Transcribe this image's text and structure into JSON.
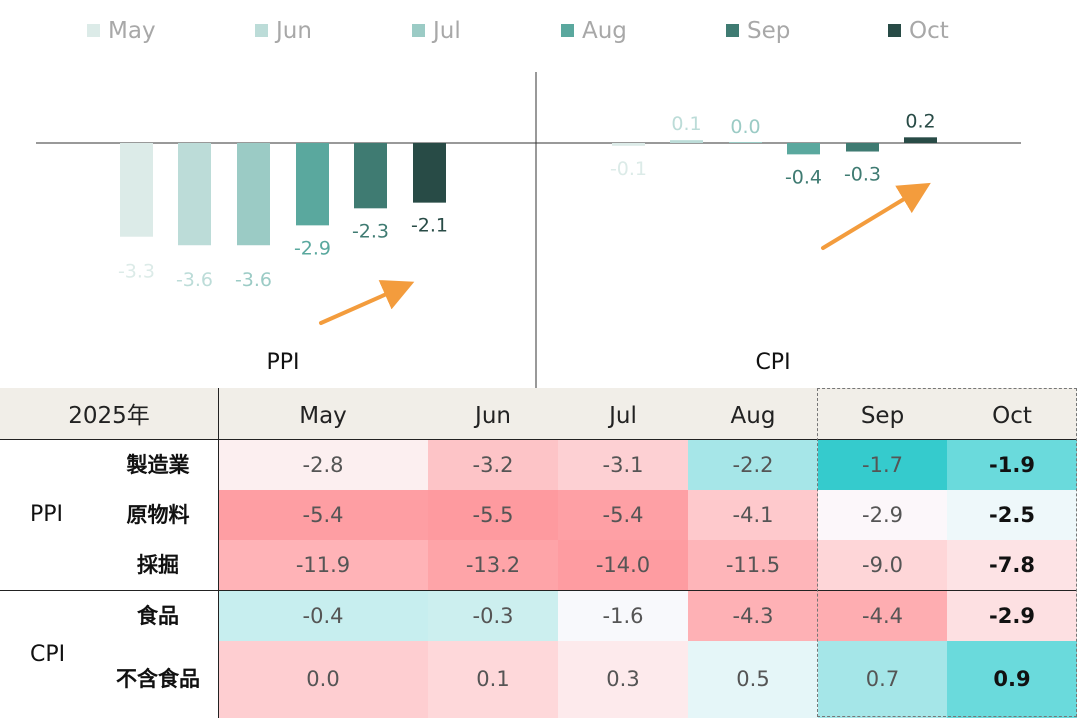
{
  "chart_data": [
    {
      "type": "bar",
      "title": "PPI",
      "categories": [
        "May",
        "Jun",
        "Jul",
        "Aug",
        "Sep",
        "Oct"
      ],
      "values": [
        -3.3,
        -3.6,
        -3.6,
        -2.9,
        -2.3,
        -2.1
      ],
      "labels": [
        "-3.3",
        "-3.6",
        "-3.6",
        "-2.9",
        "-2.3",
        "-2.1"
      ],
      "ylim": [
        -4,
        1
      ]
    },
    {
      "type": "bar",
      "title": "CPI",
      "categories": [
        "May",
        "Jun",
        "Jul",
        "Aug",
        "Sep",
        "Oct"
      ],
      "values": [
        -0.1,
        0.1,
        0.0,
        -0.4,
        -0.3,
        0.2
      ],
      "labels": [
        "-0.1",
        "0.1",
        "0.0",
        "-0.4",
        "-0.3",
        "0.2"
      ],
      "ylim": [
        -4,
        1
      ]
    }
  ],
  "legend": {
    "items": [
      "May",
      "Jun",
      "Jul",
      "Aug",
      "Sep",
      "Oct"
    ],
    "colors": [
      "#dcebe8",
      "#bcdcd8",
      "#9bcbc5",
      "#5aa89e",
      "#3f7b72",
      "#284b46"
    ]
  },
  "table": {
    "year_label": "2025年",
    "columns": [
      "May",
      "Jun",
      "Jul",
      "Aug",
      "Sep",
      "Oct"
    ],
    "groups": [
      {
        "name": "PPI",
        "rows": [
          {
            "label": "製造業",
            "values": [
              "-2.8",
              "-3.2",
              "-3.1",
              "-2.2",
              "-1.7",
              "-1.9"
            ],
            "colors": [
              "#fceff0",
              "#fdc4c7",
              "#fdd0d3",
              "#a6e6e8",
              "#35cbcd",
              "#6adadc"
            ]
          },
          {
            "label": "原物料",
            "values": [
              "-5.4",
              "-5.5",
              "-5.4",
              "-4.1",
              "-2.9",
              "-2.5"
            ],
            "colors": [
              "#fe9ea3",
              "#fe9a9f",
              "#fea0a5",
              "#fec9cc",
              "#fcf7fa",
              "#eef8fa"
            ]
          },
          {
            "label": "採掘",
            "values": [
              "-11.9",
              "-13.2",
              "-14.0",
              "-11.5",
              "-9.0",
              "-7.8"
            ],
            "colors": [
              "#ffb3b7",
              "#fea4a8",
              "#fe9ca1",
              "#feb5b9",
              "#fed6d8",
              "#fde3e5"
            ]
          }
        ]
      },
      {
        "name": "CPI",
        "rows": [
          {
            "label": "食品",
            "values": [
              "-0.4",
              "-0.3",
              "-1.6",
              "-4.3",
              "-4.4",
              "-2.9"
            ],
            "colors": [
              "#c7eeef",
              "#ccefef",
              "#f8f9fc",
              "#feb1b5",
              "#feadb1",
              "#fde0e2"
            ]
          },
          {
            "label": "不含食品",
            "values": [
              "0.0",
              "0.1",
              "0.3",
              "0.5",
              "0.7",
              "0.9"
            ],
            "colors": [
              "#feced1",
              "#fed8da",
              "#fdeaec",
              "#e5f6f8",
              "#a5e6e8",
              "#6adadc"
            ]
          }
        ]
      }
    ]
  }
}
